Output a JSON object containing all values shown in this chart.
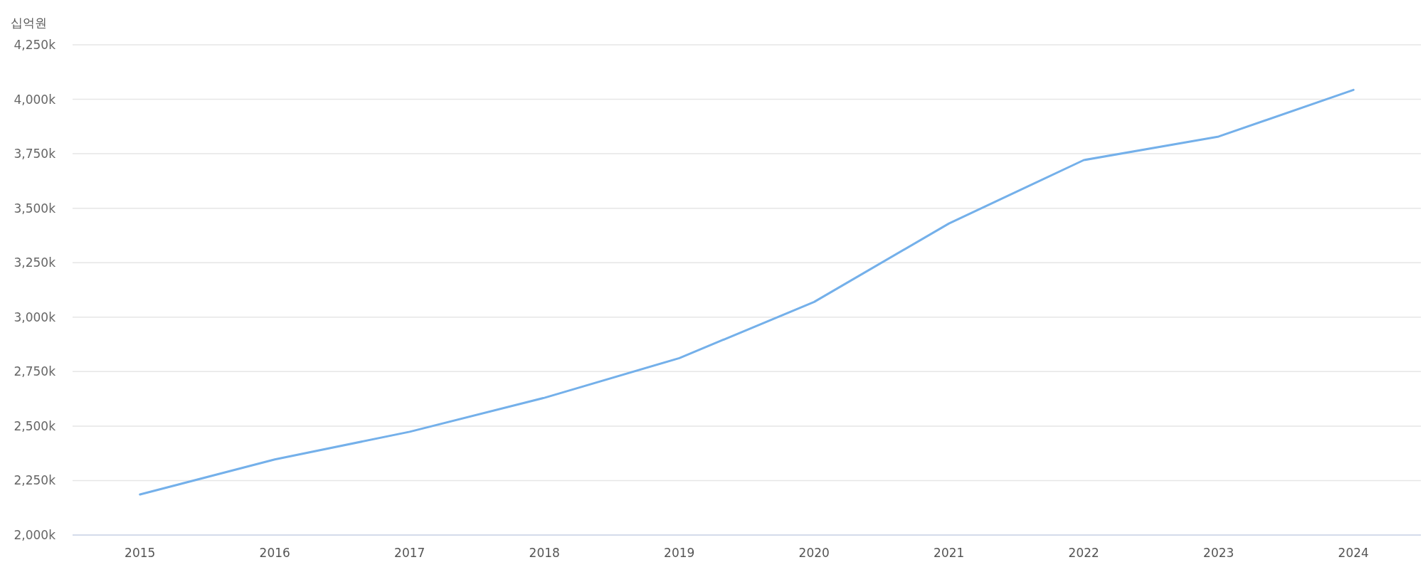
{
  "chart_data": {
    "type": "line",
    "ylabel": "십억원",
    "categories": [
      "2015",
      "2016",
      "2017",
      "2018",
      "2019",
      "2020",
      "2021",
      "2022",
      "2023",
      "2024"
    ],
    "series": [
      {
        "color": "#74b0ea",
        "values": [
          2186000,
          2347000,
          2474000,
          2630000,
          2812000,
          3070000,
          3430000,
          3721000,
          3829000,
          4043000
        ]
      }
    ],
    "ylim": [
      2000000,
      4250000
    ],
    "yticks": [
      {
        "value": 2000000,
        "label": "2,000k"
      },
      {
        "value": 2250000,
        "label": "2,250k"
      },
      {
        "value": 2500000,
        "label": "2,500k"
      },
      {
        "value": 2750000,
        "label": "2,750k"
      },
      {
        "value": 3000000,
        "label": "3,000k"
      },
      {
        "value": 3250000,
        "label": "3,250k"
      },
      {
        "value": 3500000,
        "label": "3,500k"
      },
      {
        "value": 3750000,
        "label": "3,750k"
      },
      {
        "value": 4000000,
        "label": "4,000k"
      },
      {
        "value": 4250000,
        "label": "4,250k"
      }
    ],
    "grid": "y",
    "marker": "none",
    "line_style": "solid"
  }
}
